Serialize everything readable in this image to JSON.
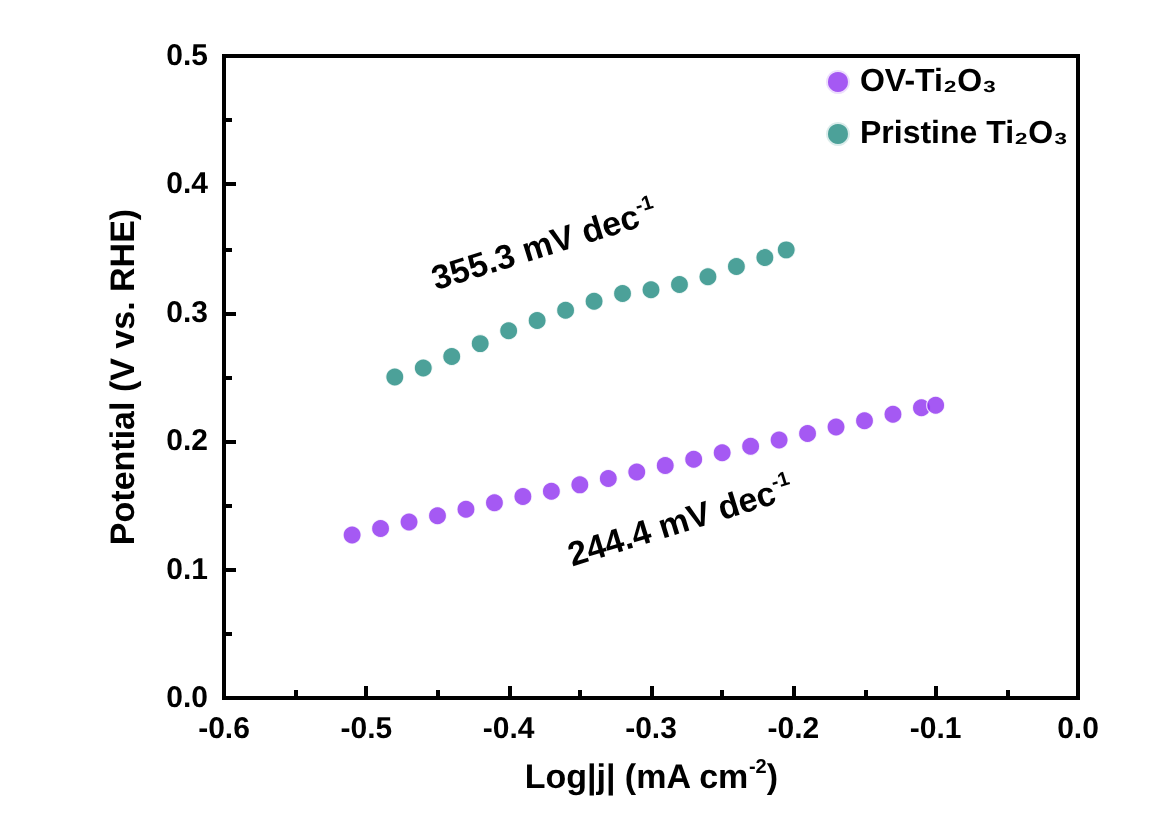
{
  "chart_data": {
    "type": "scatter",
    "xlabel": "Log|j| (mA cm$^{-2}$)",
    "ylabel": "Potential (V vs. RHE)",
    "xlim": [
      -0.6,
      0.0
    ],
    "xticks": [
      -0.6,
      -0.5,
      -0.4,
      -0.3,
      -0.2,
      -0.1,
      {
        "value": 0,
        "label": "0.0"
      }
    ],
    "ylim": [
      0.0,
      0.5
    ],
    "yticks": [
      {
        "value": 0,
        "label": "0.0"
      },
      0.1,
      0.2,
      0.3,
      0.4,
      0.5
    ],
    "grid": false,
    "legend": "top right",
    "marker": "circle",
    "series": [
      {
        "name": "OV-Ti₂O₃",
        "color": "#8f2ff0",
        "x": [
          -0.51,
          -0.49,
          -0.47,
          -0.45,
          -0.43,
          -0.41,
          -0.39,
          -0.37,
          -0.35,
          -0.33,
          -0.31,
          -0.29,
          -0.27,
          -0.25,
          -0.23,
          -0.21,
          -0.19,
          -0.17,
          -0.15,
          -0.13,
          -0.11,
          -0.1
        ],
        "values": [
          0.127,
          0.132,
          0.137,
          0.142,
          0.147,
          0.152,
          0.157,
          0.161,
          0.166,
          0.171,
          0.176,
          0.181,
          0.186,
          0.191,
          0.196,
          0.201,
          0.206,
          0.211,
          0.216,
          0.221,
          0.226,
          0.228
        ]
      },
      {
        "name": "Pristine Ti₂O₃",
        "color": "#1f8a80",
        "x": [
          -0.48,
          -0.46,
          -0.44,
          -0.42,
          -0.4,
          -0.38,
          -0.36,
          -0.34,
          -0.32,
          -0.3,
          -0.28,
          -0.26,
          -0.24,
          -0.22,
          -0.205
        ],
        "values": [
          0.25,
          0.257,
          0.266,
          0.276,
          0.286,
          0.294,
          0.302,
          0.309,
          0.315,
          0.318,
          0.322,
          0.328,
          0.336,
          0.343,
          0.349
        ]
      }
    ],
    "annotations": [
      "355.3 mV dec$^{-1}$",
      "244.4 mV dec$^{-1}$"
    ]
  }
}
